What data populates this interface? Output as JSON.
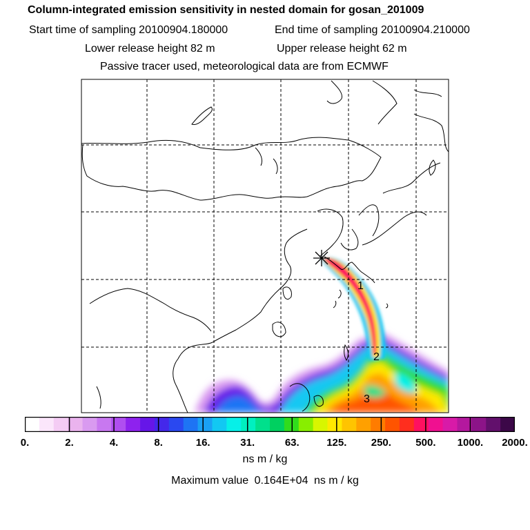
{
  "header": {
    "title": "Column-integrated emission sensitivity in nested domain for gosan_201009",
    "start_label": "Start time of sampling 20100904.180000",
    "end_label": "End time of sampling 20100904.210000",
    "lower_label": "Lower release height   82 m",
    "upper_label": "Upper release height   62 m",
    "tracer_label": "Passive tracer used, meteorological data are from ECMWF"
  },
  "map": {
    "release_marker": "star-icon",
    "labels": [
      "1",
      "2",
      "3"
    ]
  },
  "colorbar": {
    "colors": [
      "#ffffff",
      "#fbe6fb",
      "#f4ccf4",
      "#eab3ee",
      "#d99af0",
      "#c878f0",
      "#b04ef0",
      "#8e22ee",
      "#6616e8",
      "#4428ea",
      "#2a48f0",
      "#1e74f4",
      "#1aa0f4",
      "#12c8f2",
      "#06f0e8",
      "#00f0c0",
      "#00e08c",
      "#00d060",
      "#30dc1c",
      "#88ee00",
      "#d8f600",
      "#ffe800",
      "#ffc400",
      "#ffa000",
      "#ff7c00",
      "#ff5400",
      "#ff2e1e",
      "#ff1060",
      "#f01090",
      "#d81aa8",
      "#b4189e",
      "#8c1488",
      "#62106c",
      "#3c0848"
    ],
    "tick_labels": [
      "0.",
      "2.",
      "4.",
      "8.",
      "16.",
      "31.",
      "63.",
      "125.",
      "250.",
      "500.",
      "1000.",
      "2000."
    ],
    "units": "ns m / kg"
  },
  "max": {
    "label": "Maximum value",
    "value": "0.164E+04",
    "units": "ns m / kg"
  }
}
